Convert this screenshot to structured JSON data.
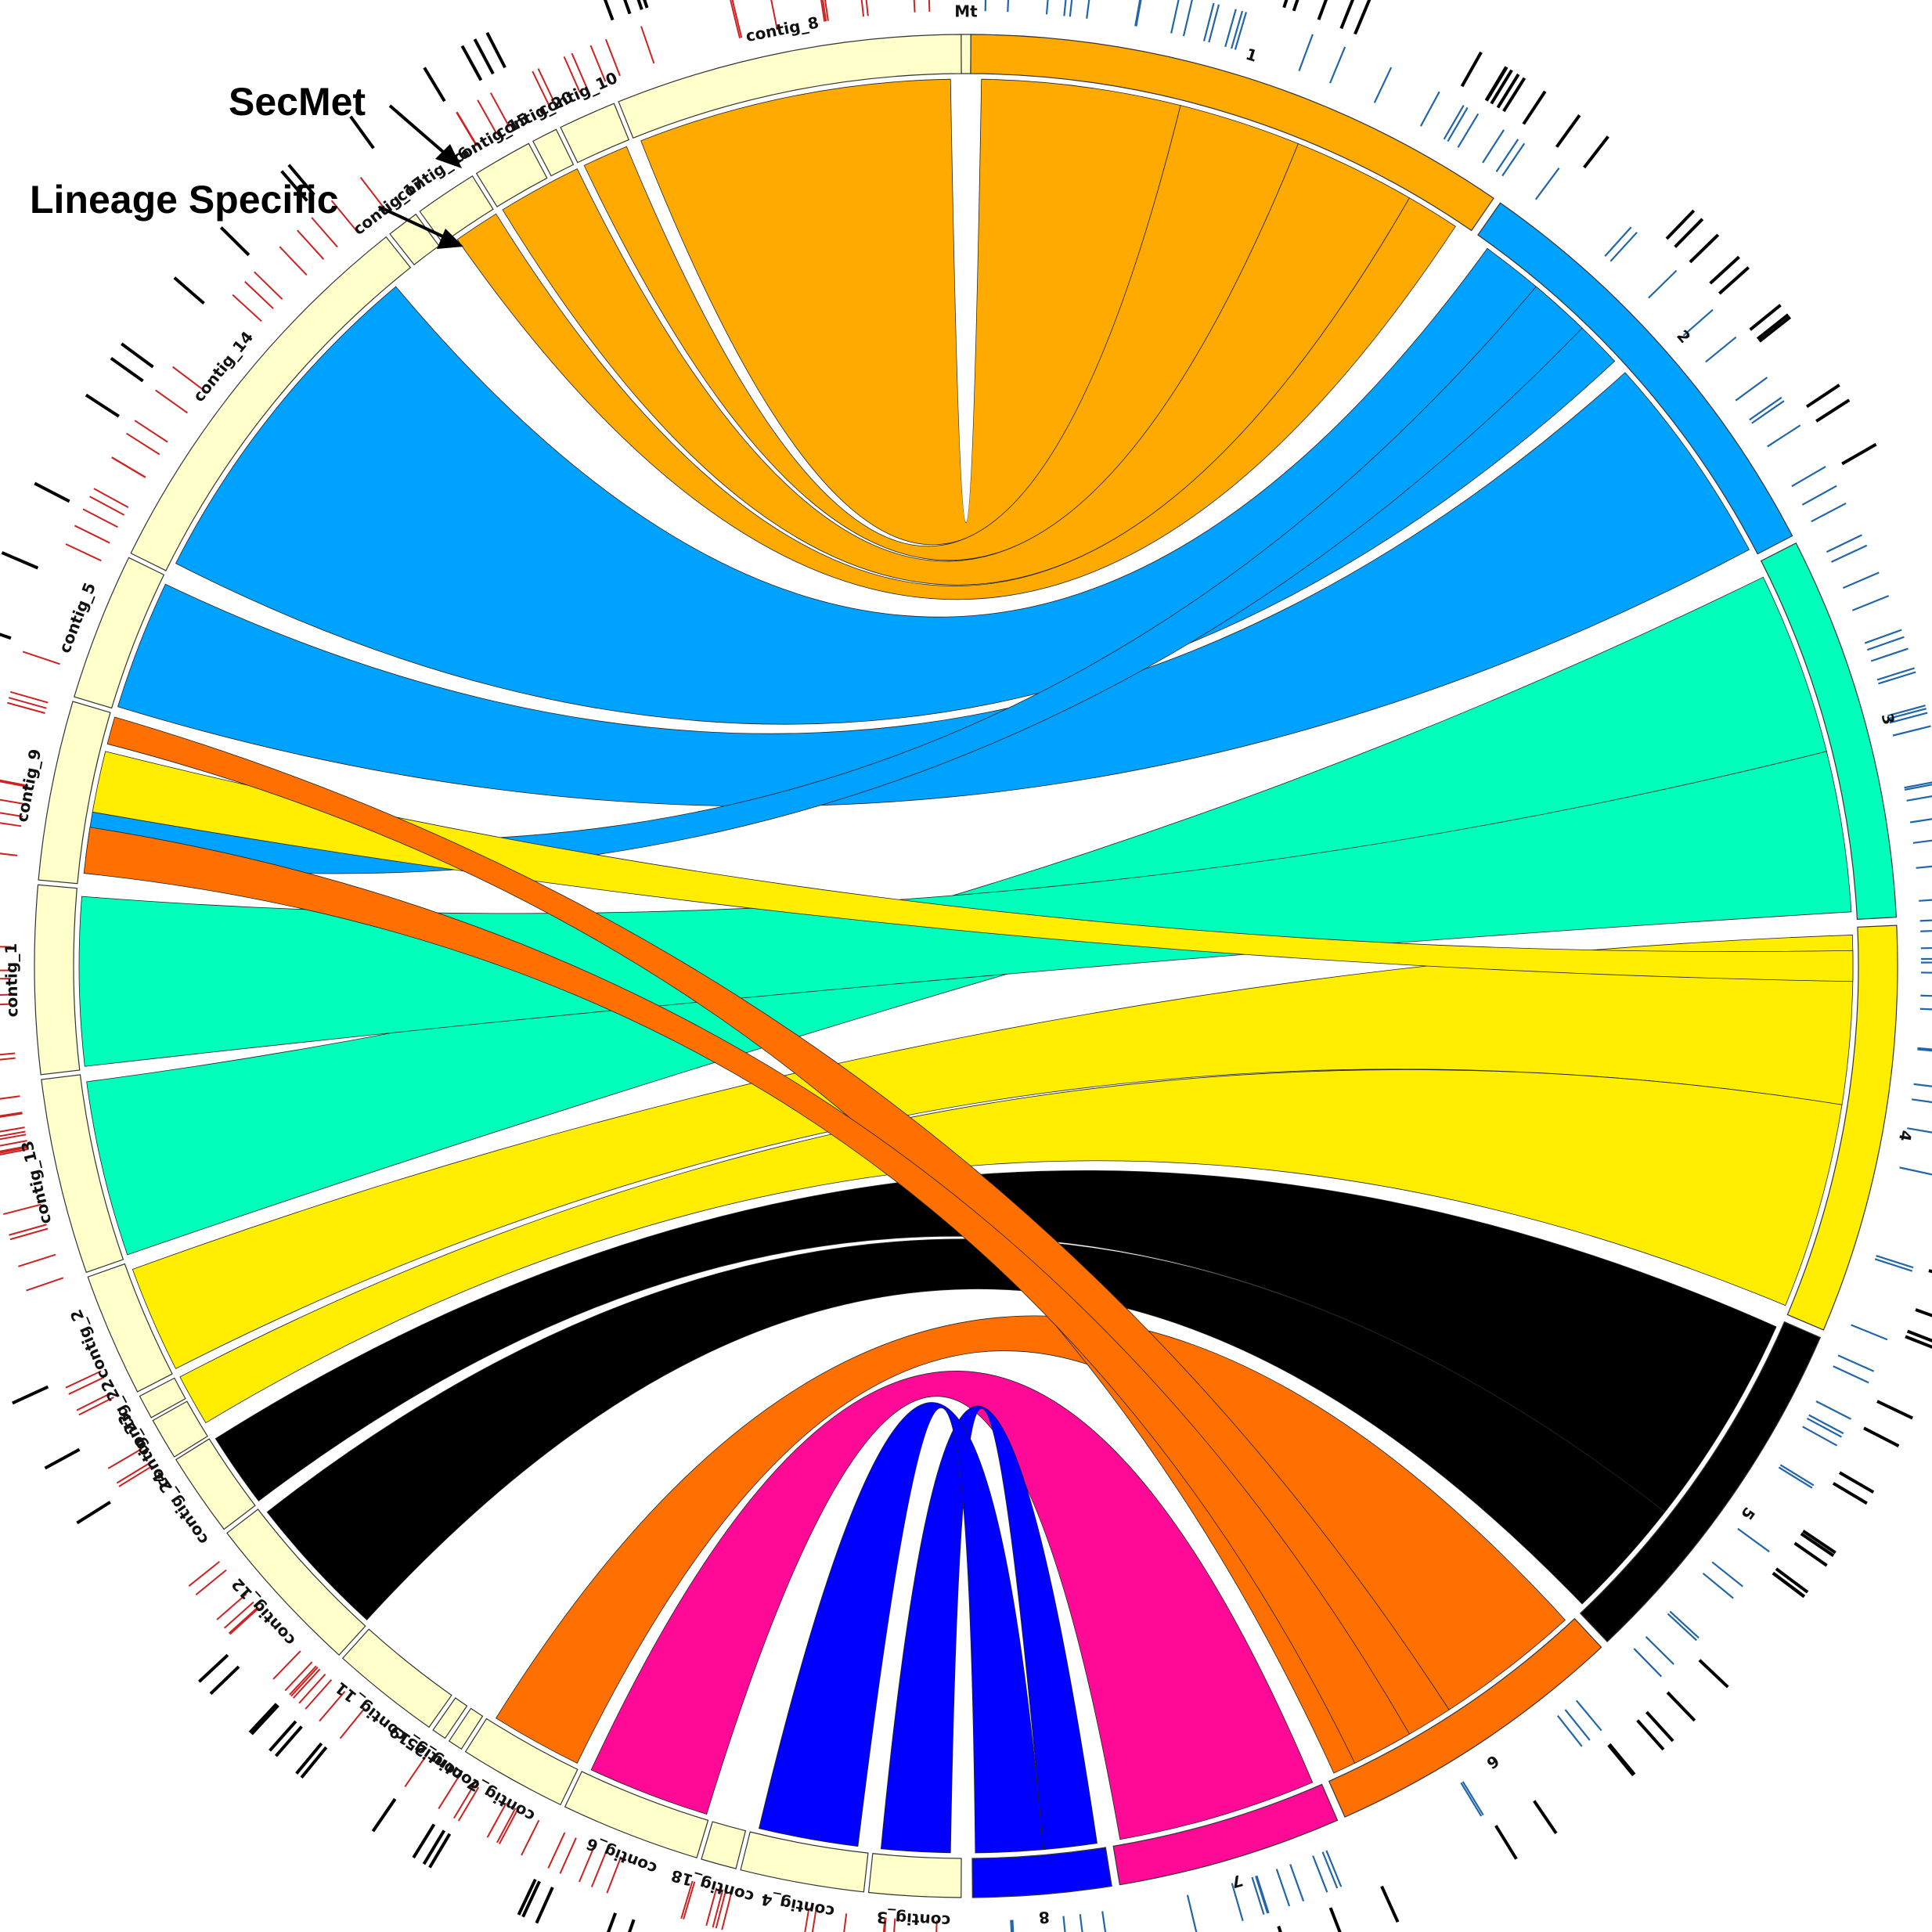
{
  "legend": {
    "secmet_label": "SecMet",
    "lineage_label": "Lineage Specific"
  },
  "chromosomes": [
    {
      "name": "Mt",
      "color": "#ffffcc"
    },
    {
      "name": "1",
      "color": "#ffaa00"
    },
    {
      "name": "2",
      "color": "#00a2ff"
    },
    {
      "name": "3",
      "color": "#00ffbb"
    },
    {
      "name": "4",
      "color": "#ffee00"
    },
    {
      "name": "5",
      "color": "#000000"
    },
    {
      "name": "6",
      "color": "#ff7000"
    },
    {
      "name": "7",
      "color": "#ff0a96"
    },
    {
      "name": "8",
      "color": "#0000ff"
    }
  ],
  "contigs": [
    "contig_3",
    "contig_4",
    "contig_18",
    "contig_6",
    "contig_7",
    "contig_25",
    "contig_19",
    "contig_11",
    "contig_12",
    "contig_24",
    "contig_23",
    "contig_22",
    "contig_2",
    "contig_13",
    "contig_1",
    "contig_9",
    "contig_5",
    "contig_14",
    "contig_17",
    "contig_16",
    "contig_15",
    "contig_20",
    "contig_10",
    "contig_8"
  ],
  "colors": {
    "contig_fill": "#ffffcc",
    "lineage_track": "#cc2222",
    "secmet_track": "#000000",
    "chrom_track": "#2266aa"
  }
}
